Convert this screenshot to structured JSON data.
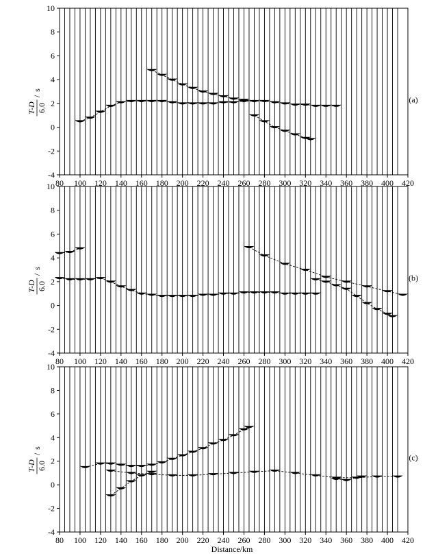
{
  "figure": {
    "xlabel": "Distance/km"
  },
  "chart_data": [
    {
      "type": "line",
      "panel_label": "(a)",
      "ylabel_numerator": "T-D",
      "ylabel_slash": "/",
      "ylabel_unit": "s",
      "ylabel_denominator": "6.0",
      "xlim": [
        80,
        420
      ],
      "ylim": [
        -4,
        10
      ],
      "xticks": [
        80,
        100,
        120,
        140,
        160,
        180,
        200,
        220,
        240,
        260,
        280,
        300,
        320,
        340,
        360,
        380,
        400,
        420
      ],
      "yticks": [
        -4,
        -2,
        0,
        2,
        4,
        6,
        8,
        10
      ],
      "grid": false,
      "legend": "none",
      "trace_x_range": [
        80,
        412
      ],
      "trace_spacing": 5,
      "series": [
        {
          "x": [
            100,
            110,
            120,
            130,
            140,
            150,
            160,
            170,
            180,
            190,
            200,
            210,
            220,
            230,
            240,
            250,
            260,
            270,
            280,
            290,
            300,
            310,
            320,
            330,
            340,
            350
          ],
          "values": [
            0.5,
            0.8,
            1.3,
            1.8,
            2.1,
            2.2,
            2.2,
            2.2,
            2.2,
            2.1,
            2.0,
            2.0,
            2.0,
            2.0,
            2.1,
            2.1,
            2.2,
            2.2,
            2.2,
            2.1,
            2.0,
            1.9,
            1.9,
            1.8,
            1.8,
            1.8
          ]
        },
        {
          "x": [
            170,
            180,
            190,
            200,
            210,
            220,
            230,
            240,
            250,
            260
          ],
          "values": [
            4.8,
            4.4,
            4.0,
            3.6,
            3.3,
            3.0,
            2.8,
            2.6,
            2.4,
            2.3
          ]
        },
        {
          "x": [
            270,
            280,
            290,
            300,
            310,
            320,
            325
          ],
          "values": [
            1.0,
            0.5,
            0.0,
            -0.3,
            -0.6,
            -0.9,
            -1.0
          ]
        }
      ]
    },
    {
      "type": "line",
      "panel_label": "(b)",
      "ylabel_numerator": "T-D",
      "ylabel_slash": "/",
      "ylabel_unit": "s",
      "ylabel_denominator": "6.0",
      "xlim": [
        80,
        420
      ],
      "ylim": [
        -4,
        10
      ],
      "xticks": [
        80,
        100,
        120,
        140,
        160,
        180,
        200,
        220,
        240,
        260,
        280,
        300,
        320,
        340,
        360,
        380,
        400,
        420
      ],
      "yticks": [
        -4,
        -2,
        0,
        2,
        4,
        6,
        8,
        10
      ],
      "grid": false,
      "legend": "none",
      "trace_x_range": [
        80,
        412
      ],
      "trace_spacing": 5,
      "series": [
        {
          "x": [
            80,
            90,
            100,
            110,
            120,
            130,
            140,
            150,
            160,
            170,
            180,
            190,
            200,
            210,
            220,
            230,
            240,
            250,
            260,
            270,
            280,
            290,
            300,
            310,
            320,
            330
          ],
          "values": [
            2.3,
            2.2,
            2.2,
            2.2,
            2.3,
            2.0,
            1.6,
            1.3,
            1.0,
            0.9,
            0.8,
            0.8,
            0.8,
            0.8,
            0.9,
            0.9,
            1.0,
            1.0,
            1.1,
            1.1,
            1.1,
            1.1,
            1.0,
            1.0,
            1.0,
            1.0
          ]
        },
        {
          "x": [
            80,
            90,
            100
          ],
          "values": [
            4.4,
            4.5,
            4.8
          ]
        },
        {
          "x": [
            265,
            280,
            300,
            320,
            340,
            360,
            380,
            400,
            415
          ],
          "values": [
            4.9,
            4.2,
            3.5,
            3.0,
            2.4,
            2.0,
            1.6,
            1.2,
            0.9
          ]
        },
        {
          "x": [
            330,
            340,
            350,
            360,
            370,
            380,
            390,
            400,
            405
          ],
          "values": [
            2.2,
            2.0,
            1.7,
            1.4,
            0.8,
            0.2,
            -0.3,
            -0.7,
            -0.9
          ]
        }
      ]
    },
    {
      "type": "line",
      "panel_label": "(c)",
      "ylabel_numerator": "T-D",
      "ylabel_slash": "/",
      "ylabel_unit": "s",
      "ylabel_denominator": "6.0",
      "xlim": [
        80,
        420
      ],
      "ylim": [
        -4,
        10
      ],
      "xticks": [
        80,
        100,
        120,
        140,
        160,
        180,
        200,
        220,
        240,
        260,
        280,
        300,
        320,
        340,
        360,
        380,
        400,
        420
      ],
      "yticks": [
        -4,
        -2,
        0,
        2,
        4,
        6,
        8,
        10
      ],
      "grid": false,
      "legend": "none",
      "trace_x_range": [
        80,
        412
      ],
      "trace_spacing": 5,
      "series": [
        {
          "x": [
            105,
            120,
            130,
            140,
            150,
            160,
            170,
            180,
            190,
            200,
            210,
            220,
            230,
            240,
            250,
            260,
            265
          ],
          "values": [
            1.5,
            1.8,
            1.8,
            1.7,
            1.6,
            1.6,
            1.7,
            1.9,
            2.2,
            2.5,
            2.8,
            3.1,
            3.5,
            3.8,
            4.2,
            4.7,
            4.9
          ]
        },
        {
          "x": [
            130,
            150,
            170,
            190,
            210,
            230,
            250,
            270,
            290,
            310,
            330,
            350,
            370,
            390,
            410
          ],
          "values": [
            1.2,
            1.0,
            0.9,
            0.8,
            0.8,
            0.9,
            1.0,
            1.1,
            1.2,
            1.0,
            0.8,
            0.6,
            0.6,
            0.7,
            0.7
          ]
        },
        {
          "x": [
            130,
            140,
            150,
            160,
            170
          ],
          "values": [
            -0.9,
            -0.3,
            0.3,
            0.8,
            1.1
          ]
        },
        {
          "x": [
            350,
            360,
            370,
            375
          ],
          "values": [
            0.5,
            0.4,
            0.6,
            0.7
          ]
        }
      ]
    }
  ]
}
